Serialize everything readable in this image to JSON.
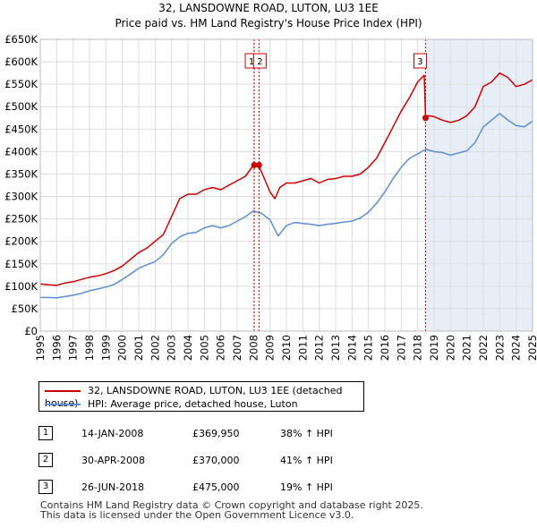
{
  "header": {
    "title": "32, LANSDOWNE ROAD, LUTON, LU3 1EE",
    "subtitle": "Price paid vs. HM Land Registry's House Price Index (HPI)"
  },
  "legend": {
    "property_label": "32, LANSDOWNE ROAD, LUTON, LU3 1EE (detached house)",
    "hpi_label": "HPI: Average price, detached house, Luton"
  },
  "sales": [
    {
      "num": "1",
      "date": "14-JAN-2008",
      "price": "£369,950",
      "hpi": "38% ↑ HPI"
    },
    {
      "num": "2",
      "date": "30-APR-2008",
      "price": "£370,000",
      "hpi": "41% ↑ HPI"
    },
    {
      "num": "3",
      "date": "26-JUN-2018",
      "price": "£475,000",
      "hpi": "19% ↑ HPI"
    }
  ],
  "footer": {
    "line1": "Contains HM Land Registry data © Crown copyright and database right 2025.",
    "line2": "This data is licensed under the Open Government Licence v3.0."
  },
  "colors": {
    "property": "#cc0000",
    "hpi": "#5b8ed6",
    "shade": "#e8eef8",
    "grid": "#dddddd"
  },
  "chart_data": {
    "type": "line",
    "title": "32, LANSDOWNE ROAD, LUTON, LU3 1EE",
    "xlim": [
      1995,
      2025
    ],
    "ylim": [
      0,
      650000
    ],
    "x_ticks": [
      "1995",
      "1996",
      "1997",
      "1998",
      "1999",
      "2000",
      "2001",
      "2002",
      "2003",
      "2004",
      "2005",
      "2006",
      "2007",
      "2008",
      "2009",
      "2010",
      "2011",
      "2012",
      "2013",
      "2014",
      "2015",
      "2016",
      "2017",
      "2018",
      "2019",
      "2020",
      "2021",
      "2022",
      "2023",
      "2024",
      "2025"
    ],
    "y_ticks": [
      "£0",
      "£50K",
      "£100K",
      "£150K",
      "£200K",
      "£250K",
      "£300K",
      "£350K",
      "£400K",
      "£450K",
      "£500K",
      "£550K",
      "£600K",
      "£650K"
    ],
    "series": [
      {
        "name": "32, LANSDOWNE ROAD, LUTON, LU3 1EE (detached house)",
        "x": [
          1995.0,
          1995.5,
          1996.0,
          1996.5,
          1997.0,
          1997.5,
          1998.0,
          1998.5,
          1999.0,
          1999.5,
          2000.0,
          2000.5,
          2001.0,
          2001.5,
          2002.0,
          2002.5,
          2003.0,
          2003.5,
          2004.0,
          2004.5,
          2005.0,
          2005.5,
          2006.0,
          2006.5,
          2007.0,
          2007.5,
          2008.0,
          2008.3,
          2008.6,
          2009.0,
          2009.3,
          2009.6,
          2010.0,
          2010.5,
          2011.0,
          2011.5,
          2012.0,
          2012.5,
          2013.0,
          2013.5,
          2014.0,
          2014.5,
          2015.0,
          2015.5,
          2016.0,
          2016.5,
          2017.0,
          2017.5,
          2018.0,
          2018.4,
          2018.48,
          2018.6,
          2019.0,
          2019.5,
          2020.0,
          2020.5,
          2021.0,
          2021.5,
          2022.0,
          2022.5,
          2023.0,
          2023.5,
          2024.0,
          2024.5,
          2025.0
        ],
        "values": [
          105000,
          103000,
          102000,
          107000,
          110000,
          115000,
          120000,
          123000,
          128000,
          135000,
          145000,
          160000,
          175000,
          185000,
          200000,
          215000,
          255000,
          295000,
          305000,
          305000,
          315000,
          320000,
          315000,
          325000,
          335000,
          345000,
          369950,
          370000,
          345000,
          310000,
          295000,
          320000,
          330000,
          330000,
          335000,
          340000,
          330000,
          338000,
          340000,
          345000,
          345000,
          350000,
          365000,
          385000,
          420000,
          455000,
          490000,
          520000,
          555000,
          570000,
          475000,
          480000,
          478000,
          470000,
          465000,
          470000,
          480000,
          500000,
          545000,
          555000,
          575000,
          565000,
          545000,
          550000,
          560000
        ]
      },
      {
        "name": "HPI: Average price, detached house, Luton",
        "x": [
          1995.0,
          1995.5,
          1996.0,
          1996.5,
          1997.0,
          1997.5,
          1998.0,
          1998.5,
          1999.0,
          1999.5,
          2000.0,
          2000.5,
          2001.0,
          2001.5,
          2002.0,
          2002.5,
          2003.0,
          2003.5,
          2004.0,
          2004.5,
          2005.0,
          2005.5,
          2006.0,
          2006.5,
          2007.0,
          2007.5,
          2008.0,
          2008.5,
          2009.0,
          2009.5,
          2010.0,
          2010.5,
          2011.0,
          2011.5,
          2012.0,
          2012.5,
          2013.0,
          2013.5,
          2014.0,
          2014.5,
          2015.0,
          2015.5,
          2016.0,
          2016.5,
          2017.0,
          2017.5,
          2018.0,
          2018.5,
          2019.0,
          2019.5,
          2020.0,
          2020.5,
          2021.0,
          2021.5,
          2022.0,
          2022.5,
          2023.0,
          2023.5,
          2024.0,
          2024.5,
          2025.0
        ],
        "values": [
          75000,
          75000,
          74000,
          77000,
          80000,
          84000,
          90000,
          94000,
          98000,
          104000,
          115000,
          127000,
          140000,
          148000,
          155000,
          170000,
          195000,
          210000,
          218000,
          220000,
          230000,
          235000,
          230000,
          235000,
          245000,
          255000,
          268000,
          262000,
          248000,
          212000,
          235000,
          242000,
          240000,
          238000,
          235000,
          238000,
          240000,
          243000,
          245000,
          252000,
          265000,
          285000,
          310000,
          340000,
          365000,
          385000,
          395000,
          405000,
          400000,
          398000,
          392000,
          397000,
          402000,
          420000,
          455000,
          470000,
          485000,
          470000,
          458000,
          455000,
          468000
        ]
      }
    ],
    "annotations": [
      {
        "label": "1",
        "x": 2008.04,
        "y": 369950
      },
      {
        "label": "2",
        "x": 2008.33,
        "y": 370000
      },
      {
        "label": "3",
        "x": 2018.48,
        "y": 475000
      }
    ],
    "shaded_from": 2018.48,
    "shaded_to": 2025,
    "grid": true
  }
}
